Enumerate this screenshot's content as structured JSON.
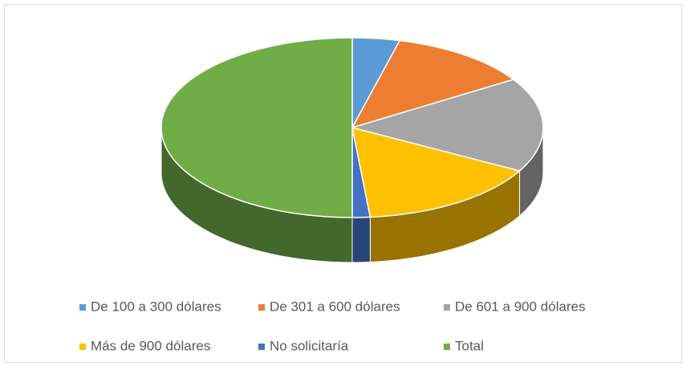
{
  "chart_data": {
    "type": "pie",
    "categories": [
      "De 100 a 300 dólares",
      "De 301 a 600 dólares",
      "De 601 a 900 dólares",
      "Más de 900 dólares",
      "No solicitaría",
      "Total"
    ],
    "values": [
      4,
      12,
      17,
      15.5,
      1.5,
      50
    ],
    "colors": [
      "#5b9bd5",
      "#ed7d31",
      "#a5a5a5",
      "#ffc000",
      "#4472c4",
      "#70ad47"
    ],
    "legend": "bottom"
  }
}
